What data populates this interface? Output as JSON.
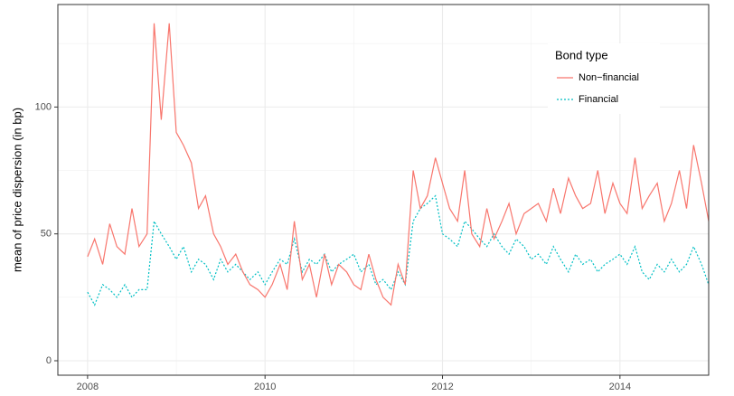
{
  "chart_data": {
    "type": "line",
    "ylabel": "mean of price dispersion (in bp)",
    "x": [
      2008.0,
      2008.08,
      2008.17,
      2008.25,
      2008.33,
      2008.42,
      2008.5,
      2008.58,
      2008.67,
      2008.75,
      2008.83,
      2008.92,
      2009.0,
      2009.08,
      2009.17,
      2009.25,
      2009.33,
      2009.42,
      2009.5,
      2009.58,
      2009.67,
      2009.75,
      2009.83,
      2009.92,
      2010.0,
      2010.08,
      2010.17,
      2010.25,
      2010.33,
      2010.42,
      2010.5,
      2010.58,
      2010.67,
      2010.75,
      2010.83,
      2010.92,
      2011.0,
      2011.08,
      2011.17,
      2011.25,
      2011.33,
      2011.42,
      2011.5,
      2011.58,
      2011.67,
      2011.75,
      2011.83,
      2011.92,
      2012.0,
      2012.08,
      2012.17,
      2012.25,
      2012.33,
      2012.42,
      2012.5,
      2012.58,
      2012.67,
      2012.75,
      2012.83,
      2012.92,
      2013.0,
      2013.08,
      2013.17,
      2013.25,
      2013.33,
      2013.42,
      2013.5,
      2013.58,
      2013.67,
      2013.75,
      2013.83,
      2013.92,
      2014.0,
      2014.08,
      2014.17,
      2014.25,
      2014.33,
      2014.42,
      2014.5,
      2014.58,
      2014.67,
      2014.75,
      2014.83,
      2014.92,
      2015.0
    ],
    "series": [
      {
        "name": "Non−financial",
        "color": "#f8766d",
        "dash": "none",
        "values": [
          41,
          48,
          38,
          54,
          45,
          42,
          60,
          45,
          50,
          133,
          95,
          133,
          90,
          85,
          78,
          60,
          65,
          50,
          45,
          38,
          42,
          35,
          30,
          28,
          25,
          30,
          38,
          28,
          55,
          32,
          38,
          25,
          42,
          30,
          38,
          35,
          30,
          28,
          42,
          32,
          25,
          22,
          38,
          30,
          75,
          60,
          65,
          80,
          70,
          60,
          55,
          75,
          50,
          45,
          60,
          48,
          55,
          62,
          50,
          58,
          60,
          62,
          55,
          68,
          58,
          72,
          65,
          60,
          62,
          75,
          58,
          70,
          62,
          58,
          80,
          60,
          65,
          70,
          55,
          62,
          75,
          60,
          85,
          70,
          55
        ]
      },
      {
        "name": "Financial",
        "color": "#00bfc4",
        "dash": "2,2",
        "values": [
          27,
          22,
          30,
          28,
          25,
          30,
          25,
          28,
          28,
          55,
          50,
          45,
          40,
          45,
          35,
          40,
          38,
          32,
          40,
          35,
          38,
          35,
          32,
          35,
          30,
          35,
          40,
          38,
          48,
          35,
          40,
          38,
          42,
          35,
          38,
          40,
          42,
          35,
          38,
          30,
          32,
          28,
          35,
          30,
          55,
          60,
          62,
          65,
          50,
          48,
          45,
          55,
          52,
          48,
          45,
          50,
          45,
          42,
          48,
          45,
          40,
          42,
          38,
          45,
          40,
          35,
          42,
          38,
          40,
          35,
          38,
          40,
          42,
          38,
          45,
          35,
          32,
          38,
          35,
          40,
          35,
          38,
          45,
          38,
          30
        ]
      }
    ],
    "legend_title": "Bond type",
    "legend_position": "top-right",
    "xlim": [
      2007.665,
      2015.0
    ],
    "ylim": [
      -5.7,
      140.4
    ],
    "xticks": [
      2008,
      2010,
      2012,
      2014
    ],
    "yticks": [
      0,
      50,
      100
    ],
    "xminor": [
      2009,
      2011,
      2013
    ],
    "yminor": [
      25,
      75,
      125
    ],
    "grid": true
  }
}
